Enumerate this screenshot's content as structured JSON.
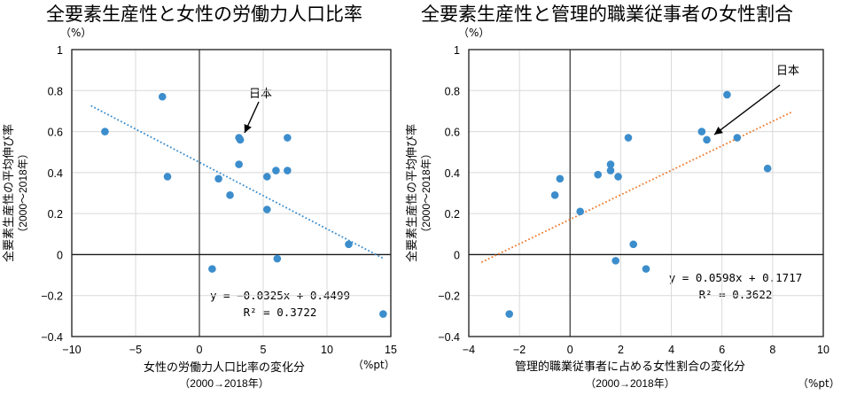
{
  "chart_data": [
    {
      "type": "scatter",
      "title": "全要素生産性と女性の労働力人口比率",
      "xlabel": "女性の労働力人口比率の変化分",
      "xlabel_sub": "（2000→2018年）",
      "x_unit": "（%pt）",
      "ylabel": "全要素生産性の平均伸び率",
      "ylabel_sub": "（2000～2018年）",
      "y_unit": "（%）",
      "xlim": [
        -10,
        15
      ],
      "ylim": [
        -0.4,
        1
      ],
      "x_ticks": [
        -10,
        -5,
        0,
        5,
        10,
        15
      ],
      "x_tick_labels": [
        "−10",
        "−5",
        "0",
        "5",
        "10",
        "15"
      ],
      "y_ticks": [
        -0.4,
        -0.2,
        0,
        0.2,
        0.4,
        0.6,
        0.8,
        1
      ],
      "y_tick_labels": [
        "−0.4",
        "−0.2",
        "0",
        "0.2",
        "0.4",
        "0.6",
        "0.8",
        "1"
      ],
      "grid": true,
      "point_color": "#3c8dcc",
      "trend_color": "#3c8dcc",
      "points": [
        {
          "x": -7.4,
          "y": 0.6
        },
        {
          "x": -2.9,
          "y": 0.77
        },
        {
          "x": -2.5,
          "y": 0.38
        },
        {
          "x": 1.0,
          "y": -0.07
        },
        {
          "x": 1.5,
          "y": 0.37
        },
        {
          "x": 2.4,
          "y": 0.29
        },
        {
          "x": 3.1,
          "y": 0.57
        },
        {
          "x": 3.2,
          "y": 0.56,
          "label": "日本"
        },
        {
          "x": 3.1,
          "y": 0.44
        },
        {
          "x": 5.3,
          "y": 0.38
        },
        {
          "x": 6.0,
          "y": 0.41
        },
        {
          "x": 6.9,
          "y": 0.41
        },
        {
          "x": 6.9,
          "y": 0.57
        },
        {
          "x": 5.3,
          "y": 0.22
        },
        {
          "x": 6.1,
          "y": -0.02
        },
        {
          "x": 11.7,
          "y": 0.05
        },
        {
          "x": 14.4,
          "y": -0.29
        }
      ],
      "trendline": {
        "slope": -0.0325,
        "intercept": 0.4499,
        "x_range": [
          -8.5,
          14.5
        ]
      },
      "equation": "y = −0.0325x + 0.4499",
      "r_squared": "R² = 0.3722",
      "annotation": "日本"
    },
    {
      "type": "scatter",
      "title": "全要素生産性と管理的職業従事者の女性割合",
      "xlabel": "管理的職業従事者に占める女性割合の変化分",
      "xlabel_sub": "（2000→2018年）",
      "x_unit": "（%pt）",
      "ylabel": "全要素生産性の平均伸び率",
      "ylabel_sub": "（2000～2018年）",
      "y_unit": "（%）",
      "xlim": [
        -4,
        10
      ],
      "ylim": [
        -0.4,
        1
      ],
      "x_ticks": [
        -4,
        -2,
        0,
        2,
        4,
        6,
        8,
        10
      ],
      "x_tick_labels": [
        "−4",
        "−2",
        "0",
        "2",
        "4",
        "6",
        "8",
        "10"
      ],
      "y_ticks": [
        -0.4,
        -0.2,
        0,
        0.2,
        0.4,
        0.6,
        0.8,
        1
      ],
      "y_tick_labels": [
        "−0.4",
        "−0.2",
        "0",
        "0.2",
        "0.4",
        "0.6",
        "0.8",
        "1"
      ],
      "grid": true,
      "point_color": "#3c8dcc",
      "trend_color": "#ed7d31",
      "points": [
        {
          "x": -2.4,
          "y": -0.29
        },
        {
          "x": -0.6,
          "y": 0.29
        },
        {
          "x": -0.4,
          "y": 0.37
        },
        {
          "x": 0.4,
          "y": 0.21
        },
        {
          "x": 1.1,
          "y": 0.39
        },
        {
          "x": 1.6,
          "y": 0.44
        },
        {
          "x": 1.6,
          "y": 0.41
        },
        {
          "x": 1.9,
          "y": 0.38
        },
        {
          "x": 1.8,
          "y": -0.03
        },
        {
          "x": 2.3,
          "y": 0.57
        },
        {
          "x": 2.5,
          "y": 0.05
        },
        {
          "x": 3.0,
          "y": -0.07
        },
        {
          "x": 5.2,
          "y": 0.6
        },
        {
          "x": 5.4,
          "y": 0.56,
          "label": "日本"
        },
        {
          "x": 6.2,
          "y": 0.78
        },
        {
          "x": 6.6,
          "y": 0.57
        },
        {
          "x": 7.8,
          "y": 0.42
        }
      ],
      "trendline": {
        "slope": 0.0598,
        "intercept": 0.1717,
        "x_range": [
          -3.5,
          8.8
        ]
      },
      "equation": "y = 0.0598x + 0.1717",
      "r_squared": "R² = 0.3622",
      "annotation": "日本"
    }
  ]
}
